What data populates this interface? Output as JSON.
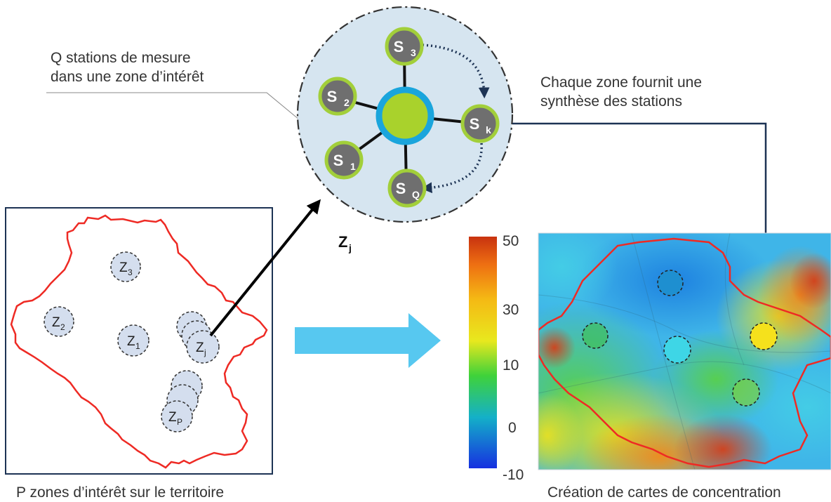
{
  "callout_left": {
    "line1": "Q stations de mesure",
    "line2": "dans une zone d’intérêt"
  },
  "callout_right": {
    "line1": "Chaque zone fournit une",
    "line2": "synthèse des stations"
  },
  "zone_hub": {
    "main": "Z",
    "sub": "j"
  },
  "stations": [
    {
      "main": "S",
      "sub": "3"
    },
    {
      "main": "S",
      "sub": "2"
    },
    {
      "main": "S",
      "sub": "k"
    },
    {
      "main": "S",
      "sub": "1"
    },
    {
      "main": "S",
      "sub": "Q"
    }
  ],
  "zones": [
    {
      "main": "Z",
      "sub": "3"
    },
    {
      "main": "Z",
      "sub": "2"
    },
    {
      "main": "Z",
      "sub": "1"
    },
    {
      "main": "Z",
      "sub": "j"
    },
    {
      "main": "Z",
      "sub": "P"
    }
  ],
  "colorbar": {
    "ticks": [
      "50",
      "30",
      "10",
      "0",
      "-10"
    ]
  },
  "captions": {
    "left": "P zones d’intérêt sur le territoire",
    "right": "Création de cartes de concentration"
  },
  "colors": {
    "boundary": "#ee2a24",
    "zone_fill": "#d4deee",
    "station_ring": "#a2cf3a",
    "station_fill": "#6f6f6f",
    "hub_fill": "#a9d22c",
    "hub_ring": "#1aa5dc",
    "network_bg": "#d6e5f0",
    "big_arrow": "#57c8f0",
    "dark_arrow": "#1d3354"
  }
}
